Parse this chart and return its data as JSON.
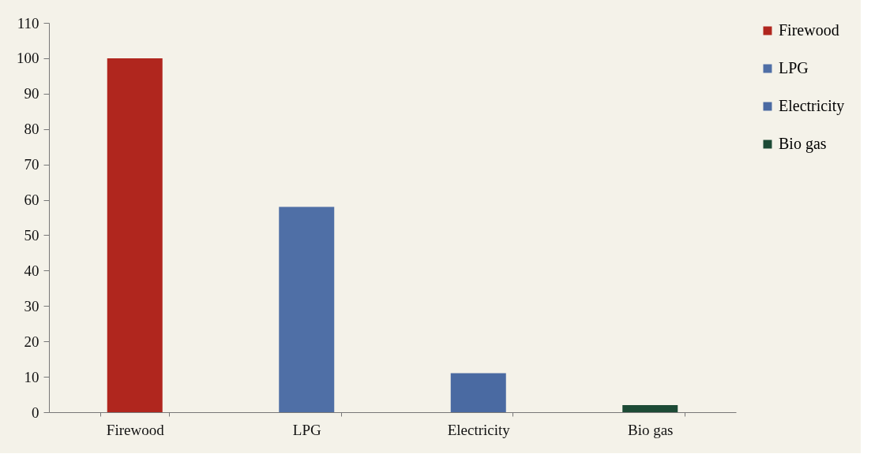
{
  "chart_data": {
    "type": "bar",
    "categories": [
      "Firewood",
      "LPG",
      "Electricity",
      "Bio gas"
    ],
    "series": [
      {
        "name": "Firewood",
        "color": "#b0261e",
        "values": [
          100,
          null,
          null,
          null
        ]
      },
      {
        "name": "LPG",
        "color": "#4f6fa6",
        "values": [
          null,
          58,
          null,
          null
        ]
      },
      {
        "name": "Electricity",
        "color": "#4a6aa2",
        "values": [
          null,
          null,
          11,
          null
        ]
      },
      {
        "name": "Bio gas",
        "color": "#1c4a35",
        "values": [
          null,
          null,
          null,
          2
        ]
      }
    ],
    "ylim": [
      0,
      110
    ],
    "yticks": [
      0,
      10,
      20,
      30,
      40,
      50,
      60,
      70,
      80,
      90,
      100,
      110
    ],
    "grid": false,
    "legend": "right"
  }
}
